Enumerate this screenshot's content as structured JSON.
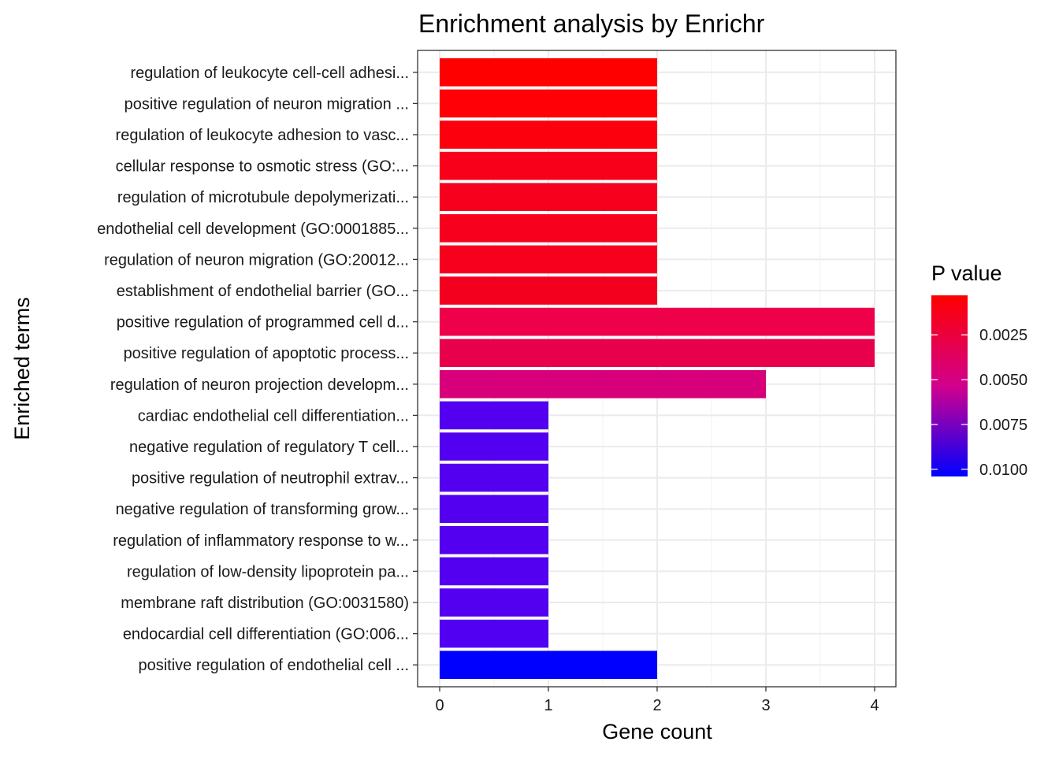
{
  "chart_data": {
    "type": "bar",
    "orientation": "horizontal",
    "title": "Enrichment analysis by Enrichr",
    "xlabel": "Gene count",
    "ylabel": "Enriched terms",
    "xlim": [
      0,
      4.2
    ],
    "xticks": [
      0,
      1,
      2,
      3,
      4
    ],
    "grid": true,
    "legend": {
      "title": "P value",
      "position": "right",
      "range": [
        0.0003,
        0.0104
      ],
      "ticks": [
        0.0025,
        0.005,
        0.0075,
        0.01
      ],
      "tick_labels": [
        "0.0025",
        "0.0050",
        "0.0075",
        "0.0100"
      ],
      "low_color": "#ff0000",
      "high_color": "#0000ff"
    },
    "categories": [
      "regulation of leukocyte cell-cell adhesi...",
      "positive regulation of neuron migration ...",
      "regulation of leukocyte adhesion to vasc...",
      "cellular response to osmotic stress (GO:...",
      "regulation of microtubule depolymerizati...",
      "endothelial cell development (GO:0001885...",
      "regulation of neuron migration (GO:20012...",
      "establishment of endothelial barrier (GO...",
      "positive regulation of programmed cell d...",
      "positive regulation of apoptotic process...",
      "regulation of neuron projection developm...",
      "cardiac endothelial cell differentiation...",
      "negative regulation of regulatory T cell...",
      "positive regulation of neutrophil extrav...",
      "negative regulation of transforming grow...",
      "regulation of inflammatory response to w...",
      "regulation of low-density lipoprotein pa...",
      "membrane raft distribution (GO:0031580)",
      "endocardial cell differentiation (GO:006...",
      "positive regulation of endothelial cell ..."
    ],
    "values": [
      2,
      2,
      2,
      2,
      2,
      2,
      2,
      2,
      4,
      4,
      3,
      1,
      1,
      1,
      1,
      1,
      1,
      1,
      1,
      2
    ],
    "colors": [
      "#ff0000",
      "#fe0006",
      "#fc000e",
      "#f80019",
      "#f6001e",
      "#f6001e",
      "#f6001e",
      "#f4001f",
      "#ee004a",
      "#e9004c",
      "#d7007a",
      "#5400f0",
      "#5400f0",
      "#5400f0",
      "#5400f0",
      "#5400f0",
      "#5400f0",
      "#5400f0",
      "#5200f2",
      "#0000ff"
    ]
  }
}
